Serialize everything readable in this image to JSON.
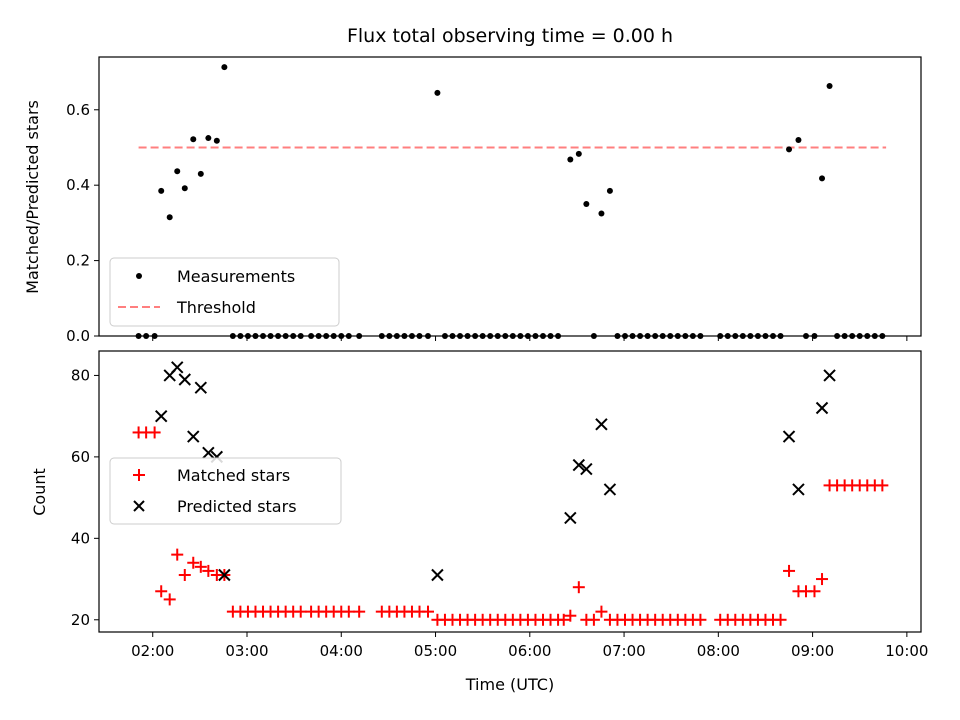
{
  "chart_data": {
    "title": "Flux total observing time = 0.00 h",
    "xlabel": "Time (UTC)",
    "x_tick_labels": [
      "02:00",
      "03:00",
      "04:00",
      "05:00",
      "06:00",
      "07:00",
      "08:00",
      "09:00",
      "10:00"
    ],
    "x_tick_hours": [
      2,
      3,
      4,
      5,
      6,
      7,
      8,
      9,
      10
    ],
    "xlim_hours": [
      1.43,
      10.15
    ],
    "panels": [
      {
        "type": "scatter",
        "ylabel": "Matched/Predicted stars",
        "ylim": [
          0,
          0.74
        ],
        "y_ticks": [
          0.0,
          0.2,
          0.4,
          0.6
        ],
        "y_tick_labels": [
          "0.0",
          "0.2",
          "0.4",
          "0.6"
        ],
        "legend_position": "lower-left",
        "legend": {
          "measurements": "Measurements",
          "threshold": "Threshold"
        },
        "threshold": {
          "value": 0.5,
          "x_start_hours": 1.85,
          "x_end_hours": 9.78,
          "color": "#ff7f7f"
        },
        "measurements": {
          "color": "#000000",
          "points": [
            [
              1.85,
              0
            ],
            [
              1.93,
              0
            ],
            [
              2.02,
              0
            ],
            [
              2.09,
              0.385
            ],
            [
              2.18,
              0.315
            ],
            [
              2.26,
              0.437
            ],
            [
              2.34,
              0.392
            ],
            [
              2.43,
              0.522
            ],
            [
              2.51,
              0.43
            ],
            [
              2.59,
              0.525
            ],
            [
              2.68,
              0.518
            ],
            [
              2.76,
              0.713
            ],
            [
              2.85,
              0
            ],
            [
              2.93,
              0
            ],
            [
              3.01,
              0
            ],
            [
              3.09,
              0
            ],
            [
              3.17,
              0
            ],
            [
              3.25,
              0
            ],
            [
              3.33,
              0
            ],
            [
              3.41,
              0
            ],
            [
              3.49,
              0
            ],
            [
              3.57,
              0
            ],
            [
              3.68,
              0
            ],
            [
              3.76,
              0
            ],
            [
              3.84,
              0
            ],
            [
              3.92,
              0
            ],
            [
              4.0,
              0
            ],
            [
              4.08,
              0
            ],
            [
              4.19,
              0
            ],
            [
              4.43,
              0
            ],
            [
              4.51,
              0
            ],
            [
              4.59,
              0
            ],
            [
              4.67,
              0
            ],
            [
              4.75,
              0
            ],
            [
              4.83,
              0
            ],
            [
              4.92,
              0
            ],
            [
              5.02,
              0.645
            ],
            [
              5.1,
              0
            ],
            [
              5.18,
              0
            ],
            [
              5.26,
              0
            ],
            [
              5.34,
              0
            ],
            [
              5.42,
              0
            ],
            [
              5.5,
              0
            ],
            [
              5.58,
              0
            ],
            [
              5.66,
              0
            ],
            [
              5.74,
              0
            ],
            [
              5.82,
              0
            ],
            [
              5.9,
              0
            ],
            [
              5.98,
              0
            ],
            [
              6.06,
              0
            ],
            [
              6.14,
              0
            ],
            [
              6.22,
              0
            ],
            [
              6.3,
              0
            ],
            [
              6.43,
              0.468
            ],
            [
              6.52,
              0.483
            ],
            [
              6.6,
              0.35
            ],
            [
              6.68,
              0
            ],
            [
              6.76,
              0.325
            ],
            [
              6.85,
              0.385
            ],
            [
              6.93,
              0
            ],
            [
              7.01,
              0
            ],
            [
              7.09,
              0
            ],
            [
              7.17,
              0
            ],
            [
              7.25,
              0
            ],
            [
              7.33,
              0
            ],
            [
              7.41,
              0
            ],
            [
              7.49,
              0
            ],
            [
              7.57,
              0
            ],
            [
              7.65,
              0
            ],
            [
              7.73,
              0
            ],
            [
              7.81,
              0
            ],
            [
              8.02,
              0
            ],
            [
              8.1,
              0
            ],
            [
              8.18,
              0
            ],
            [
              8.26,
              0
            ],
            [
              8.34,
              0
            ],
            [
              8.42,
              0
            ],
            [
              8.5,
              0
            ],
            [
              8.58,
              0
            ],
            [
              8.66,
              0
            ],
            [
              8.75,
              0.495
            ],
            [
              8.85,
              0.52
            ],
            [
              8.93,
              0
            ],
            [
              9.02,
              0
            ],
            [
              9.1,
              0.418
            ],
            [
              9.18,
              0.663
            ],
            [
              9.26,
              0
            ],
            [
              9.34,
              0
            ],
            [
              9.42,
              0
            ],
            [
              9.5,
              0
            ],
            [
              9.58,
              0
            ],
            [
              9.66,
              0
            ],
            [
              9.74,
              0
            ]
          ]
        }
      },
      {
        "type": "scatter",
        "ylabel": "Count",
        "ylim": [
          17,
          86
        ],
        "y_ticks": [
          20,
          40,
          60,
          80
        ],
        "y_tick_labels": [
          "20",
          "40",
          "60",
          "80"
        ],
        "legend_position": "center-left",
        "series": [
          {
            "name": "Matched stars",
            "marker": "plus",
            "color": "#ff0000",
            "points": [
              [
                1.85,
                66
              ],
              [
                1.93,
                66
              ],
              [
                2.02,
                66
              ],
              [
                2.09,
                27
              ],
              [
                2.18,
                25
              ],
              [
                2.26,
                36
              ],
              [
                2.34,
                31
              ],
              [
                2.43,
                34
              ],
              [
                2.51,
                33
              ],
              [
                2.59,
                32
              ],
              [
                2.68,
                31
              ],
              [
                2.76,
                31
              ],
              [
                2.85,
                22
              ],
              [
                2.93,
                22
              ],
              [
                3.01,
                22
              ],
              [
                3.09,
                22
              ],
              [
                3.17,
                22
              ],
              [
                3.25,
                22
              ],
              [
                3.33,
                22
              ],
              [
                3.41,
                22
              ],
              [
                3.49,
                22
              ],
              [
                3.57,
                22
              ],
              [
                3.68,
                22
              ],
              [
                3.76,
                22
              ],
              [
                3.84,
                22
              ],
              [
                3.92,
                22
              ],
              [
                4.0,
                22
              ],
              [
                4.08,
                22
              ],
              [
                4.19,
                22
              ],
              [
                4.43,
                22
              ],
              [
                4.51,
                22
              ],
              [
                4.59,
                22
              ],
              [
                4.67,
                22
              ],
              [
                4.75,
                22
              ],
              [
                4.83,
                22
              ],
              [
                4.92,
                22
              ],
              [
                5.02,
                20
              ],
              [
                5.1,
                20
              ],
              [
                5.18,
                20
              ],
              [
                5.26,
                20
              ],
              [
                5.34,
                20
              ],
              [
                5.42,
                20
              ],
              [
                5.5,
                20
              ],
              [
                5.58,
                20
              ],
              [
                5.66,
                20
              ],
              [
                5.74,
                20
              ],
              [
                5.82,
                20
              ],
              [
                5.9,
                20
              ],
              [
                5.98,
                20
              ],
              [
                6.06,
                20
              ],
              [
                6.14,
                20
              ],
              [
                6.22,
                20
              ],
              [
                6.3,
                20
              ],
              [
                6.36,
                20
              ],
              [
                6.43,
                21
              ],
              [
                6.52,
                28
              ],
              [
                6.6,
                20
              ],
              [
                6.68,
                20
              ],
              [
                6.76,
                22
              ],
              [
                6.85,
                20
              ],
              [
                6.93,
                20
              ],
              [
                7.01,
                20
              ],
              [
                7.09,
                20
              ],
              [
                7.17,
                20
              ],
              [
                7.25,
                20
              ],
              [
                7.33,
                20
              ],
              [
                7.41,
                20
              ],
              [
                7.49,
                20
              ],
              [
                7.57,
                20
              ],
              [
                7.65,
                20
              ],
              [
                7.73,
                20
              ],
              [
                7.81,
                20
              ],
              [
                8.02,
                20
              ],
              [
                8.1,
                20
              ],
              [
                8.18,
                20
              ],
              [
                8.26,
                20
              ],
              [
                8.34,
                20
              ],
              [
                8.42,
                20
              ],
              [
                8.5,
                20
              ],
              [
                8.58,
                20
              ],
              [
                8.66,
                20
              ],
              [
                8.75,
                32
              ],
              [
                8.85,
                27
              ],
              [
                8.93,
                27
              ],
              [
                9.02,
                27
              ],
              [
                9.1,
                30
              ],
              [
                9.18,
                53
              ],
              [
                9.26,
                53
              ],
              [
                9.34,
                53
              ],
              [
                9.42,
                53
              ],
              [
                9.5,
                53
              ],
              [
                9.58,
                53
              ],
              [
                9.66,
                53
              ],
              [
                9.74,
                53
              ]
            ]
          },
          {
            "name": "Predicted stars",
            "marker": "x",
            "color": "#000000",
            "points": [
              [
                2.09,
                70
              ],
              [
                2.18,
                80
              ],
              [
                2.26,
                82
              ],
              [
                2.34,
                79
              ],
              [
                2.43,
                65
              ],
              [
                2.51,
                77
              ],
              [
                2.59,
                61
              ],
              [
                2.68,
                60
              ],
              [
                2.76,
                31
              ],
              [
                5.02,
                31
              ],
              [
                6.43,
                45
              ],
              [
                6.52,
                58
              ],
              [
                6.6,
                57
              ],
              [
                6.76,
                68
              ],
              [
                6.85,
                52
              ],
              [
                8.75,
                65
              ],
              [
                8.85,
                52
              ],
              [
                9.1,
                72
              ],
              [
                9.18,
                80
              ]
            ]
          }
        ]
      }
    ]
  }
}
